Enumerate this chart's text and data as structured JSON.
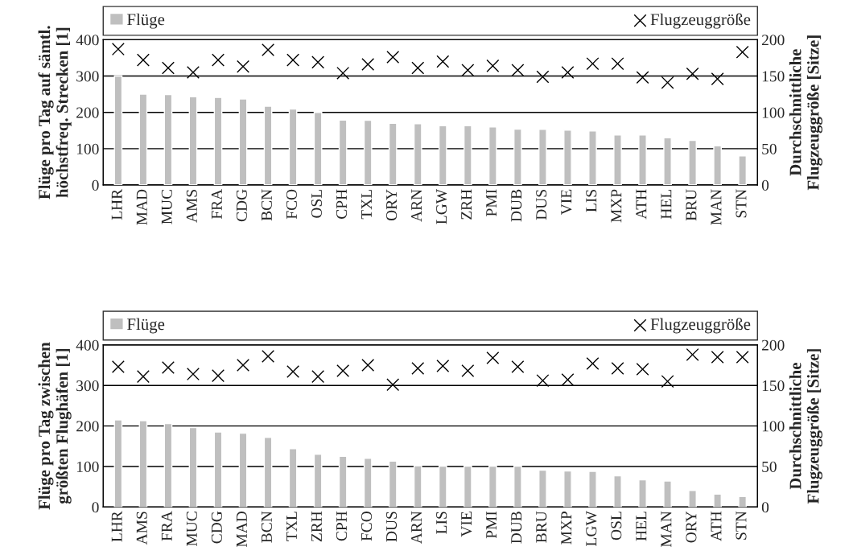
{
  "chart_data": [
    {
      "type": "bar",
      "categories": [
        "LHR",
        "MAD",
        "MUC",
        "AMS",
        "FRA",
        "CDG",
        "BCN",
        "FCO",
        "OSL",
        "CPH",
        "TXL",
        "ORY",
        "ARN",
        "LGW",
        "ZRH",
        "PMI",
        "DUB",
        "DUS",
        "VIE",
        "LIS",
        "MXP",
        "ATH",
        "HEL",
        "BRU",
        "MAN",
        "STN"
      ],
      "ylabel": "Flüge pro Tag auf sämtl.\nhöchstfreq. Strecken [1]",
      "y2label": "Durchschnittliche\nFlugzeuggröße [Sitze]",
      "series": [
        {
          "name": "Flüge",
          "color": "#bfbfbf",
          "values": [
            300,
            250,
            249,
            243,
            241,
            237,
            217,
            209,
            200,
            179,
            178,
            170,
            169,
            163,
            163,
            160,
            154,
            153,
            151,
            149,
            138,
            138,
            130,
            123,
            108,
            80
          ]
        },
        {
          "name": "Flugzeuggröße",
          "type": "scatter",
          "axis": "y2",
          "color": "#000000",
          "marker": "cross",
          "values": [
            187,
            172,
            161,
            155,
            172,
            163,
            186,
            172,
            169,
            154,
            166,
            176,
            161,
            170,
            158,
            164,
            158,
            149,
            155,
            167,
            167,
            148,
            141,
            153,
            146,
            183
          ]
        }
      ],
      "ylim": [
        0,
        400
      ],
      "yticks": [
        0,
        100,
        200,
        300,
        400
      ],
      "y2lim": [
        0,
        200
      ],
      "y2ticks": [
        0,
        50,
        100,
        150,
        200
      ],
      "grid": "y",
      "legend": "top"
    },
    {
      "type": "bar",
      "categories": [
        "LHR",
        "AMS",
        "FRA",
        "MUC",
        "CDG",
        "MAD",
        "BCN",
        "TXL",
        "ZRH",
        "CPH",
        "FCO",
        "DUS",
        "ARN",
        "LIS",
        "VIE",
        "PMI",
        "DUB",
        "BRU",
        "MXP",
        "LGW",
        "OSL",
        "HEL",
        "MAN",
        "ORY",
        "ATH",
        "STN"
      ],
      "ylabel": "Flüge pro Tag zwischen\ngrößten Flughäfen [1]",
      "y2label": "Durchschnittliche\nFlugzeuggröße [Sitze]",
      "series": [
        {
          "name": "Flüge",
          "color": "#bfbfbf",
          "values": [
            215,
            213,
            206,
            196,
            185,
            182,
            172,
            144,
            130,
            125,
            120,
            113,
            102,
            101,
            101,
            101,
            101,
            91,
            89,
            88,
            77,
            67,
            64,
            41,
            32,
            26
          ]
        },
        {
          "name": "Flugzeuggröße",
          "type": "scatter",
          "axis": "y2",
          "color": "#000000",
          "marker": "cross",
          "values": [
            173,
            161,
            172,
            164,
            162,
            175,
            186,
            167,
            161,
            168,
            175,
            151,
            171,
            174,
            168,
            184,
            173,
            156,
            157,
            177,
            171,
            170,
            155,
            188,
            185,
            185
          ]
        }
      ],
      "ylim": [
        0,
        400
      ],
      "yticks": [
        0,
        100,
        200,
        300,
        400
      ],
      "y2lim": [
        0,
        200
      ],
      "y2ticks": [
        0,
        50,
        100,
        150,
        200
      ],
      "grid": "y",
      "legend": "top"
    }
  ]
}
